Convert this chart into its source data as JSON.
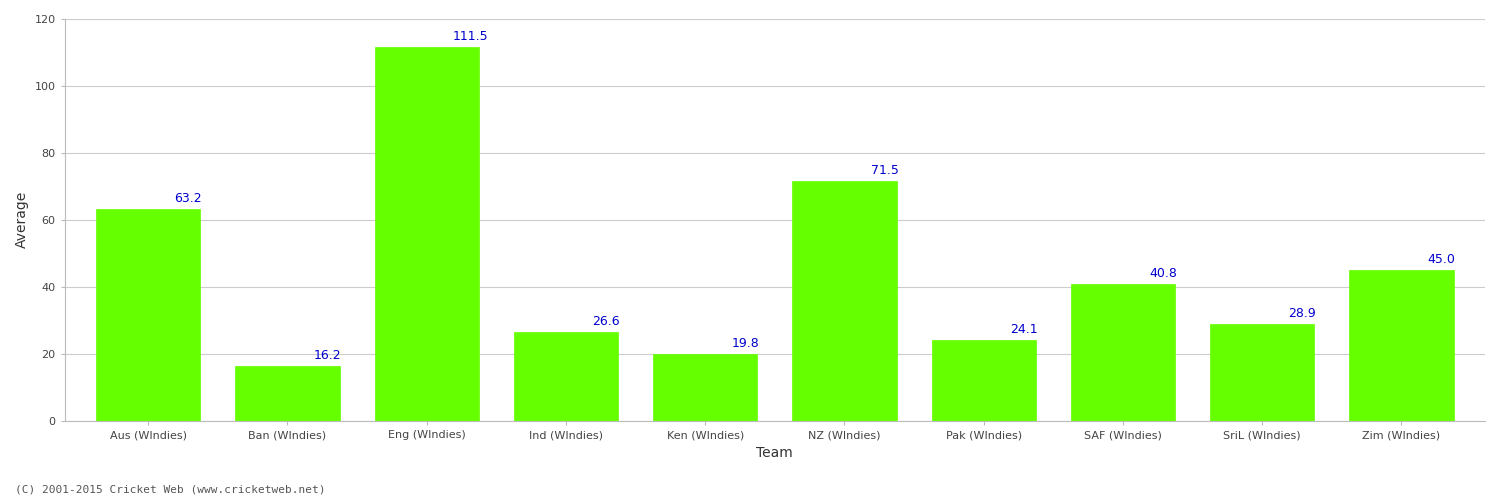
{
  "categories": [
    "Aus (WIndies)",
    "Ban (WIndies)",
    "Eng (WIndies)",
    "Ind (WIndies)",
    "Ken (WIndies)",
    "NZ (WIndies)",
    "Pak (WIndies)",
    "SAF (WIndies)",
    "SriL (WIndies)",
    "Zim (WIndies)"
  ],
  "values": [
    63.2,
    16.2,
    111.5,
    26.6,
    19.8,
    71.5,
    24.1,
    40.8,
    28.9,
    45.0
  ],
  "bar_color": "#66ff00",
  "bar_edge_color": "#66ff00",
  "label_color": "#0000cc",
  "xlabel": "Team",
  "ylabel": "Average",
  "ylim": [
    0,
    120
  ],
  "yticks": [
    0,
    20,
    40,
    60,
    80,
    100,
    120
  ],
  "grid_color": "#cccccc",
  "background_color": "#ffffff",
  "label_fontsize": 9,
  "axis_label_fontsize": 10,
  "tick_fontsize": 8,
  "bar_width": 0.75,
  "footer_text": "(C) 2001-2015 Cricket Web (www.cricketweb.net)"
}
